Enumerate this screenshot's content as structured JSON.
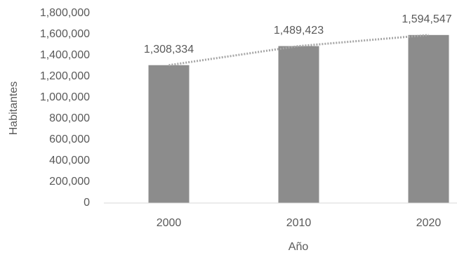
{
  "chart_data": {
    "type": "bar",
    "x_label": "Año",
    "y_label": "Habitantes",
    "categories": [
      "2000",
      "2010",
      "2020"
    ],
    "values": [
      1308334,
      1489423,
      1594547
    ],
    "value_labels": [
      "1,308,334",
      "1,489,423",
      "1,594,547"
    ],
    "color": "#8c8c8c",
    "trend_color": "#a6a6a6",
    "ylim": [
      0,
      1800000
    ],
    "yticks": [
      0,
      {
        "value": 200000,
        "label": "200,000"
      },
      {
        "value": 400000,
        "label": "400,000"
      },
      {
        "value": 600000,
        "label": "600,000"
      },
      {
        "value": 800000,
        "label": "800,000"
      },
      {
        "value": 1000000,
        "label": "1,000,000"
      },
      {
        "value": 1200000,
        "label": "1,200,000"
      },
      {
        "value": 1400000,
        "label": "1,400,000"
      },
      {
        "value": 1600000,
        "label": "1,600,000"
      },
      {
        "value": 1800000,
        "label": "1,800,000"
      }
    ],
    "grid": false
  }
}
